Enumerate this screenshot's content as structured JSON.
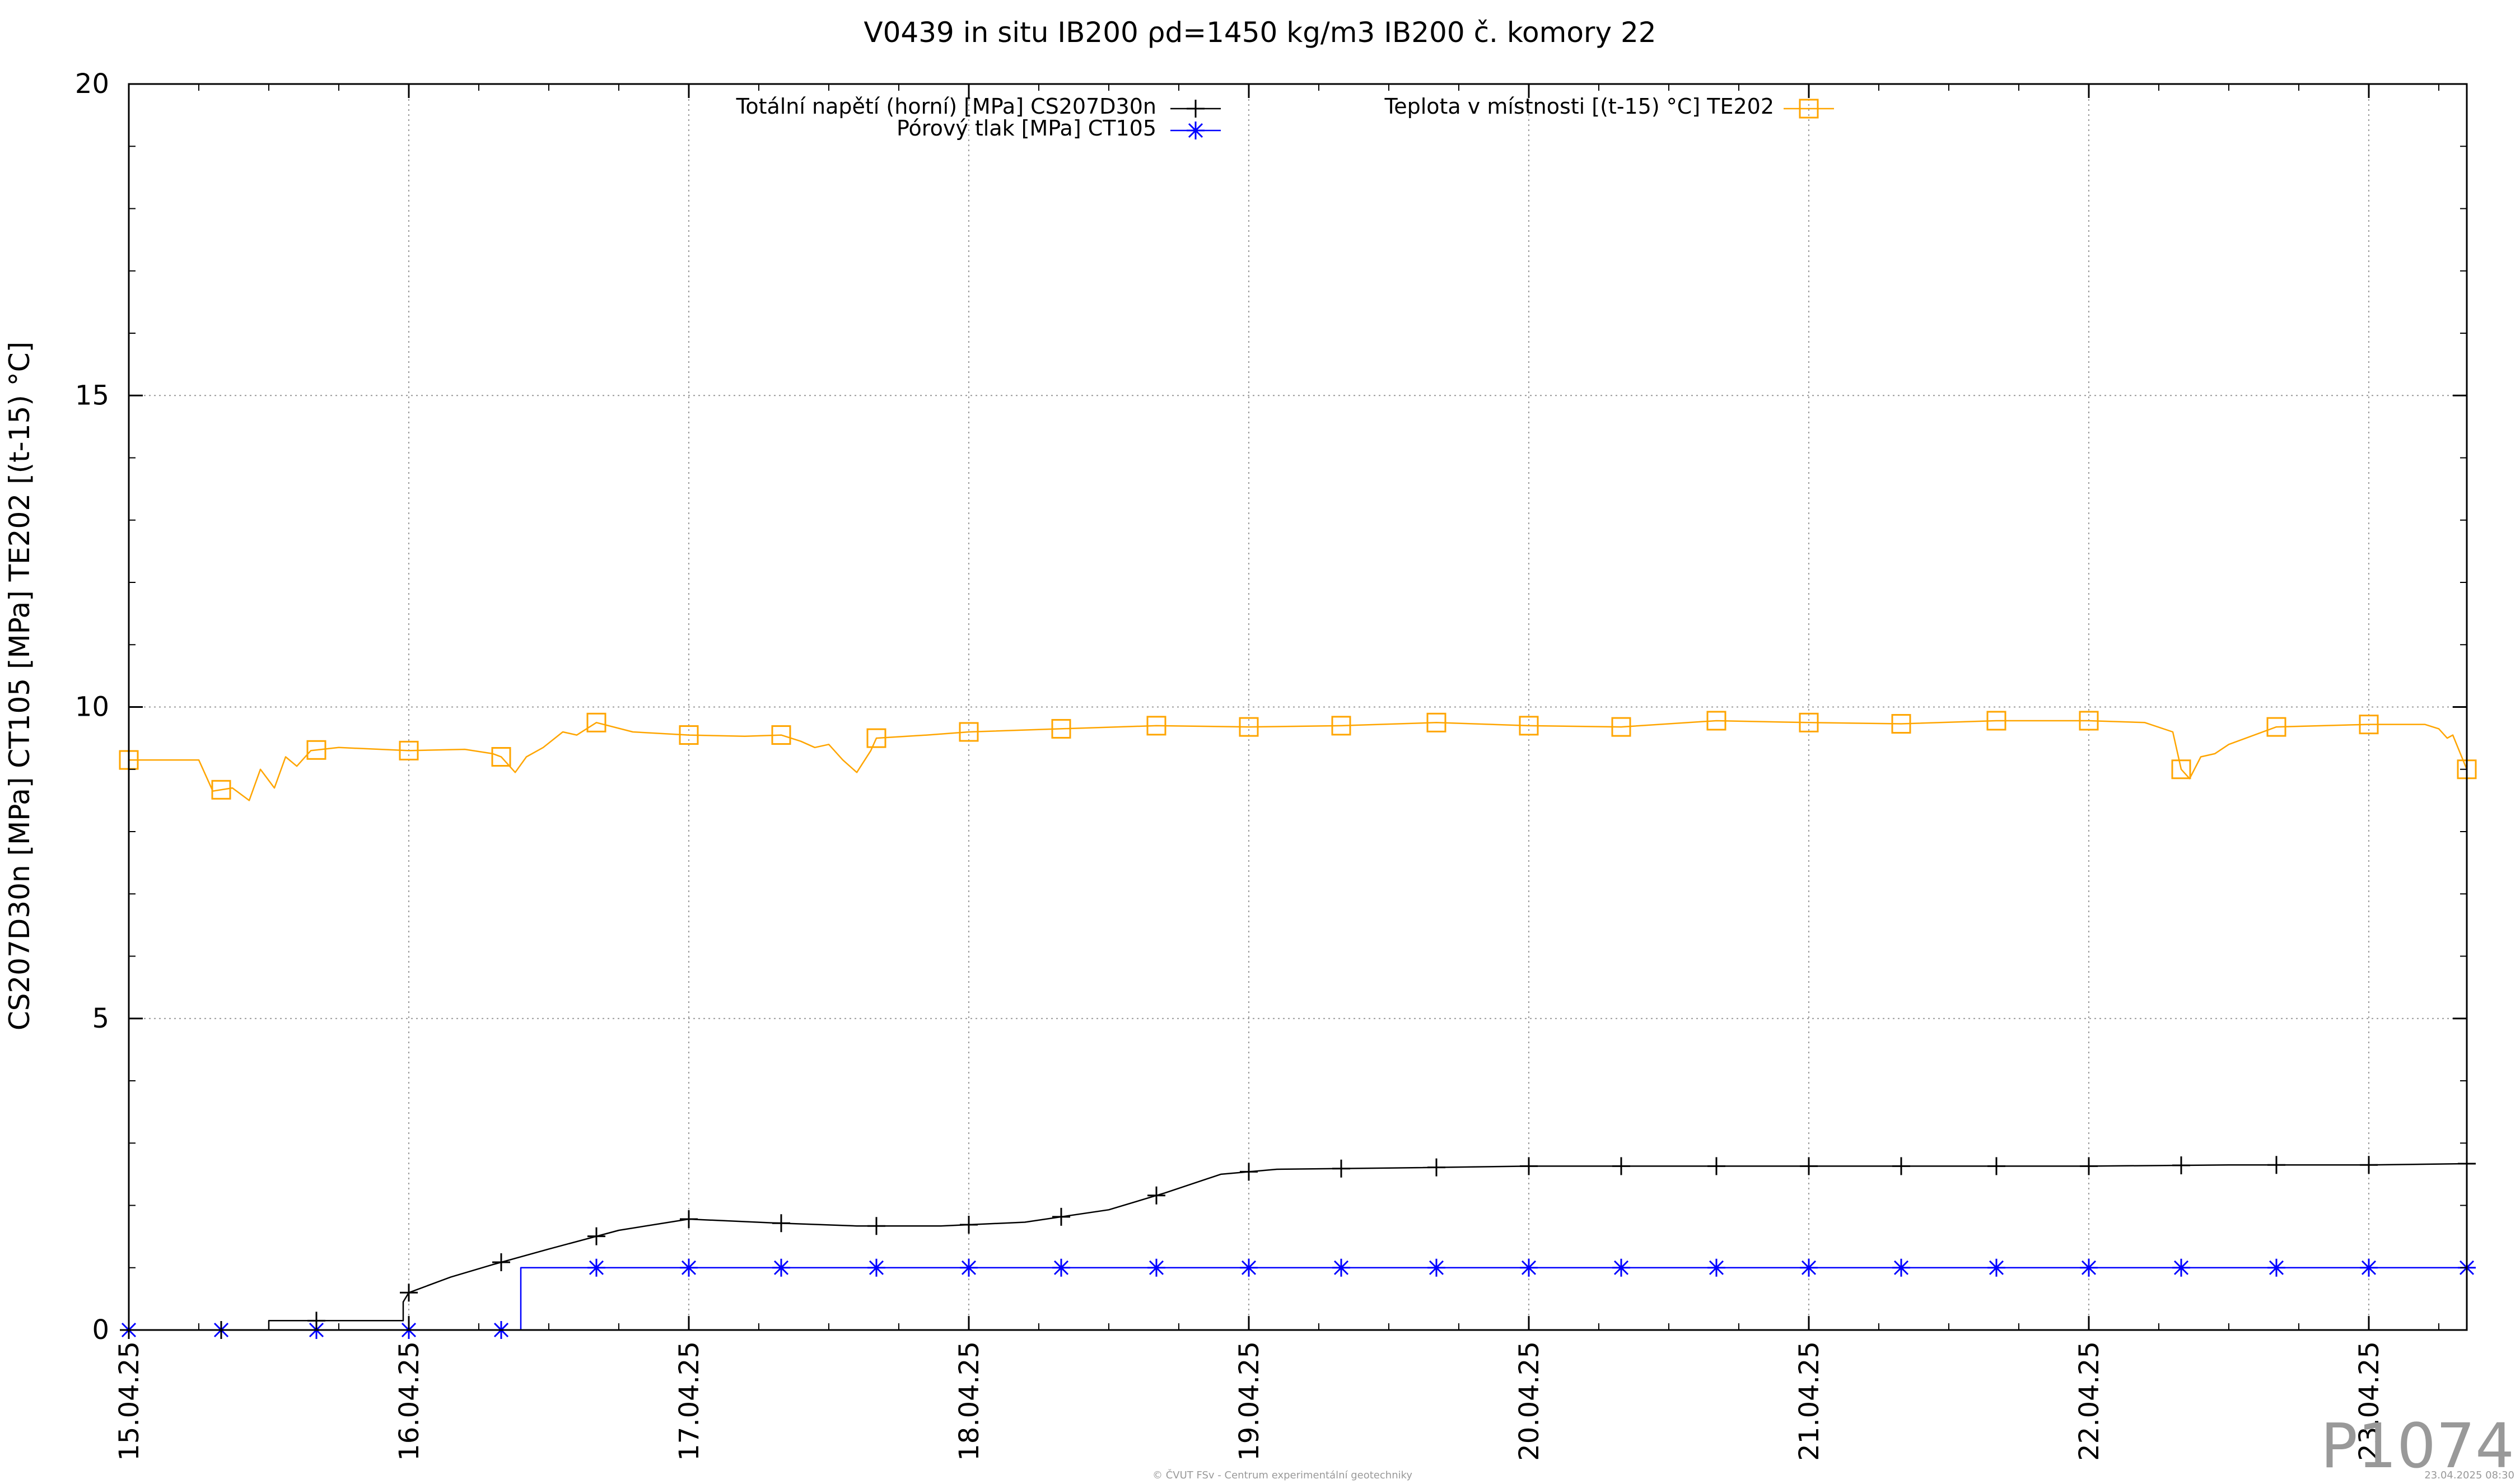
{
  "chart_data": {
    "type": "line",
    "title": "V0439 in situ IB200 ρd=1450 kg/m3 IB200 č. komory 22",
    "ylabel": "CS207D30n [MPa] CT105 [MPa] TE202 [(t-15) °C]",
    "xlabel": "",
    "ylim": [
      0,
      20
    ],
    "yticks": [
      0,
      5,
      10,
      15,
      20
    ],
    "xlim": [
      0,
      8.35
    ],
    "x_unit": "days from 15.04.25",
    "xtick_labels": [
      "15.04.25",
      "16.04.25",
      "17.04.25",
      "18.04.25",
      "19.04.25",
      "20.04.25",
      "21.04.25",
      "22.04.25",
      "23.04.25"
    ],
    "grid": true,
    "legend": "top-center",
    "series": [
      {
        "name": "Totální napětí (horní) [MPa] CS207D30n",
        "color": "#000000",
        "marker": "plus",
        "points": [
          [
            0,
            0
          ],
          [
            0.5,
            0
          ],
          [
            0.5,
            0.15
          ],
          [
            0.98,
            0.15
          ],
          [
            0.98,
            0.45
          ],
          [
            1.0,
            0.6
          ],
          [
            1.15,
            0.85
          ],
          [
            1.3,
            1.05
          ],
          [
            1.5,
            1.3
          ],
          [
            1.75,
            1.6
          ],
          [
            2.0,
            1.78
          ],
          [
            2.3,
            1.72
          ],
          [
            2.6,
            1.67
          ],
          [
            2.9,
            1.67
          ],
          [
            3.2,
            1.73
          ],
          [
            3.5,
            1.93
          ],
          [
            3.7,
            2.2
          ],
          [
            3.9,
            2.5
          ],
          [
            4.1,
            2.58
          ],
          [
            4.5,
            2.6
          ],
          [
            5.0,
            2.63
          ],
          [
            6.0,
            2.63
          ],
          [
            7.0,
            2.63
          ],
          [
            7.5,
            2.65
          ],
          [
            8.0,
            2.65
          ],
          [
            8.35,
            2.67
          ]
        ],
        "markers_x": [
          0,
          0.33,
          0.67,
          1.0,
          1.33,
          1.67,
          2.0,
          2.33,
          2.67,
          3.0,
          3.33,
          3.67,
          4.0,
          4.33,
          4.67,
          5.0,
          5.33,
          5.67,
          6.0,
          6.33,
          6.67,
          7.0,
          7.33,
          7.67,
          8.0,
          8.35
        ]
      },
      {
        "name": "Pórový tlak [MPa] CT105",
        "color": "#0000ff",
        "marker": "star",
        "points": [
          [
            0,
            0
          ],
          [
            1.4,
            0
          ],
          [
            1.4,
            1.0
          ],
          [
            8.35,
            1.0
          ]
        ],
        "markers_x": [
          0,
          0.33,
          0.67,
          1.0,
          1.33,
          1.67,
          2.0,
          2.33,
          2.67,
          3.0,
          3.33,
          3.67,
          4.0,
          4.33,
          4.67,
          5.0,
          5.33,
          5.67,
          6.0,
          6.33,
          6.67,
          7.0,
          7.33,
          7.67,
          8.0,
          8.35
        ]
      },
      {
        "name": "Teplota v místnosti [(t-15) °C] TE202",
        "color": "#ffa500",
        "marker": "square",
        "points": [
          [
            0,
            9.15
          ],
          [
            0.25,
            9.15
          ],
          [
            0.27,
            8.95
          ],
          [
            0.3,
            8.65
          ],
          [
            0.37,
            8.7
          ],
          [
            0.43,
            8.5
          ],
          [
            0.47,
            9.0
          ],
          [
            0.52,
            8.7
          ],
          [
            0.56,
            9.2
          ],
          [
            0.6,
            9.05
          ],
          [
            0.65,
            9.3
          ],
          [
            0.75,
            9.35
          ],
          [
            1.0,
            9.3
          ],
          [
            1.2,
            9.32
          ],
          [
            1.3,
            9.25
          ],
          [
            1.33,
            9.2
          ],
          [
            1.38,
            8.95
          ],
          [
            1.42,
            9.2
          ],
          [
            1.48,
            9.35
          ],
          [
            1.55,
            9.6
          ],
          [
            1.6,
            9.55
          ],
          [
            1.67,
            9.75
          ],
          [
            1.8,
            9.6
          ],
          [
            2.0,
            9.55
          ],
          [
            2.2,
            9.53
          ],
          [
            2.33,
            9.55
          ],
          [
            2.4,
            9.45
          ],
          [
            2.45,
            9.35
          ],
          [
            2.5,
            9.4
          ],
          [
            2.55,
            9.15
          ],
          [
            2.6,
            8.95
          ],
          [
            2.65,
            9.3
          ],
          [
            2.67,
            9.5
          ],
          [
            2.85,
            9.55
          ],
          [
            3.0,
            9.6
          ],
          [
            3.33,
            9.65
          ],
          [
            3.67,
            9.7
          ],
          [
            4.0,
            9.68
          ],
          [
            4.33,
            9.7
          ],
          [
            4.67,
            9.75
          ],
          [
            5.0,
            9.7
          ],
          [
            5.33,
            9.68
          ],
          [
            5.67,
            9.78
          ],
          [
            6.0,
            9.75
          ],
          [
            6.33,
            9.73
          ],
          [
            6.67,
            9.78
          ],
          [
            7.0,
            9.78
          ],
          [
            7.2,
            9.75
          ],
          [
            7.3,
            9.6
          ],
          [
            7.33,
            9.0
          ],
          [
            7.36,
            8.85
          ],
          [
            7.4,
            9.2
          ],
          [
            7.45,
            9.25
          ],
          [
            7.5,
            9.4
          ],
          [
            7.67,
            9.68
          ],
          [
            8.0,
            9.72
          ],
          [
            8.2,
            9.72
          ],
          [
            8.25,
            9.65
          ],
          [
            8.28,
            9.5
          ],
          [
            8.3,
            9.55
          ],
          [
            8.35,
            9.0
          ]
        ],
        "markers_x": [
          0,
          0.33,
          0.67,
          1.0,
          1.33,
          1.67,
          2.0,
          2.33,
          2.67,
          3.0,
          3.33,
          3.67,
          4.0,
          4.33,
          4.67,
          5.0,
          5.33,
          5.67,
          6.0,
          6.33,
          6.67,
          7.0,
          7.33,
          7.67,
          8.0,
          8.35
        ]
      }
    ],
    "watermark": "P1074",
    "footer_left": "© ČVUT FSv - Centrum experimentální geotechniky",
    "footer_right": "23.04.2025 08:30"
  }
}
